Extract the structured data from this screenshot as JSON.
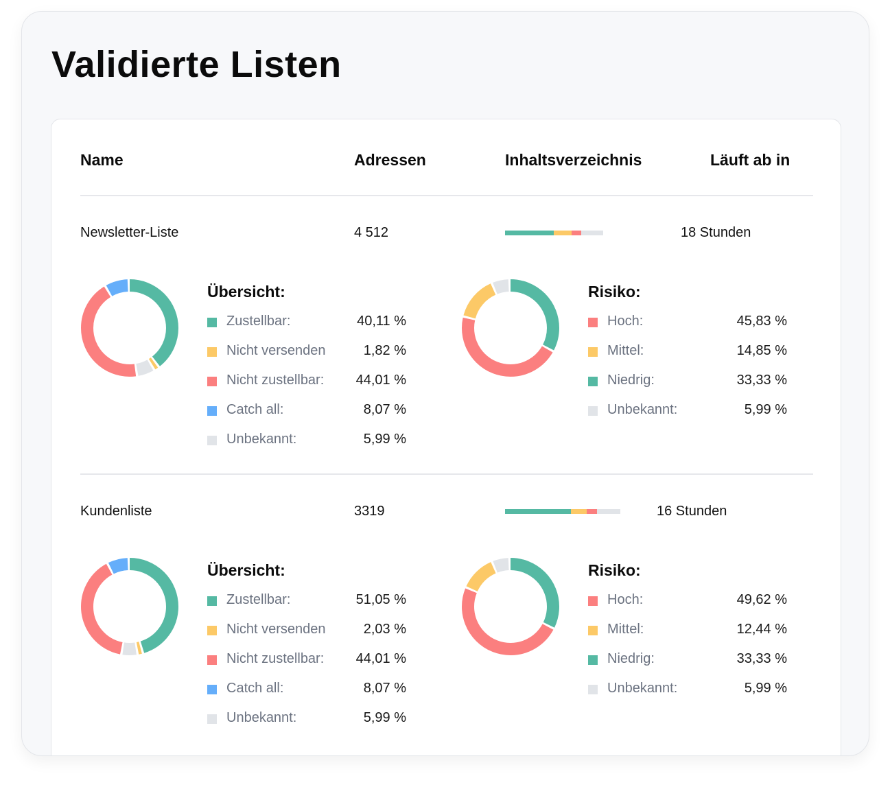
{
  "page": {
    "title": "Validierte Listen"
  },
  "colors": {
    "zustellbar": "#55b9a3",
    "nicht_versenden": "#fcc967",
    "nicht_zustellbar": "#fb7f7f",
    "catch_all": "#65aefa",
    "unbekannt": "#e1e4e8",
    "hoch": "#fb7f7f",
    "mittel": "#fcc967",
    "niedrig": "#55b9a3"
  },
  "table": {
    "headers": {
      "name": "Name",
      "adressen": "Adressen",
      "inhalt": "Inhaltsverzeichnis",
      "laeuft": "Läuft ab in"
    }
  },
  "lists": [
    {
      "name": "Newsletter-Liste",
      "adressen": "4 512",
      "expires": "18 Stunden",
      "content_bar_fraction": 1.0,
      "overview": {
        "title": "Übersicht:",
        "items": [
          {
            "key": "zustellbar",
            "label": "Zustellbar:",
            "value": "40,11 %",
            "pct": 40.11,
            "color": "#55b9a3"
          },
          {
            "key": "nicht_versenden",
            "label": "Nicht versenden",
            "value": "1,82 %",
            "pct": 1.82,
            "color": "#fcc967"
          },
          {
            "key": "nicht_zustellbar",
            "label": "Nicht zustellbar:",
            "value": "44,01 %",
            "pct": 44.01,
            "color": "#fb7f7f"
          },
          {
            "key": "catch_all",
            "label": "Catch all:",
            "value": "8,07 %",
            "pct": 8.07,
            "color": "#65aefa"
          },
          {
            "key": "unbekannt",
            "label": "Unbekannt:",
            "value": "5,99 %",
            "pct": 5.99,
            "color": "#e1e4e8"
          }
        ],
        "donut_order": [
          "zustellbar",
          "nicht_versenden",
          "unbekannt",
          "nicht_zustellbar",
          "catch_all"
        ]
      },
      "risk": {
        "title": "Risiko:",
        "items": [
          {
            "key": "hoch",
            "label": "Hoch:",
            "value": "45,83 %",
            "pct": 45.83,
            "color": "#fb7f7f"
          },
          {
            "key": "mittel",
            "label": "Mittel:",
            "value": "14,85 %",
            "pct": 14.85,
            "color": "#fcc967"
          },
          {
            "key": "niedrig",
            "label": "Niedrig:",
            "value": "33,33 %",
            "pct": 33.33,
            "color": "#55b9a3"
          },
          {
            "key": "unbekannt",
            "label": "Unbekannt:",
            "value": "5,99 %",
            "pct": 5.99,
            "color": "#e1e4e8"
          }
        ],
        "donut_order": [
          "niedrig",
          "hoch",
          "mittel",
          "unbekannt"
        ]
      }
    },
    {
      "name": "Kundenliste",
      "adressen": "3319",
      "expires": "16 Stunden",
      "content_bar_fraction": 1.0,
      "overview": {
        "title": "Übersicht:",
        "items": [
          {
            "key": "zustellbar",
            "label": "Zustellbar:",
            "value": "51,05 %",
            "pct": 51.05,
            "color": "#55b9a3"
          },
          {
            "key": "nicht_versenden",
            "label": "Nicht versenden",
            "value": "2,03 %",
            "pct": 2.03,
            "color": "#fcc967"
          },
          {
            "key": "nicht_zustellbar",
            "label": "Nicht zustellbar:",
            "value": "44,01 %",
            "pct": 44.01,
            "color": "#fb7f7f"
          },
          {
            "key": "catch_all",
            "label": "Catch all:",
            "value": "8,07 %",
            "pct": 8.07,
            "color": "#65aefa"
          },
          {
            "key": "unbekannt",
            "label": "Unbekannt:",
            "value": "5,99 %",
            "pct": 5.99,
            "color": "#e1e4e8"
          }
        ],
        "donut_order": [
          "zustellbar",
          "nicht_versenden",
          "unbekannt",
          "nicht_zustellbar",
          "catch_all"
        ]
      },
      "risk": {
        "title": "Risiko:",
        "items": [
          {
            "key": "hoch",
            "label": "Hoch:",
            "value": "49,62 %",
            "pct": 49.62,
            "color": "#fb7f7f"
          },
          {
            "key": "mittel",
            "label": "Mittel:",
            "value": "12,44 %",
            "pct": 12.44,
            "color": "#fcc967"
          },
          {
            "key": "niedrig",
            "label": "Niedrig:",
            "value": "33,33 %",
            "pct": 33.33,
            "color": "#55b9a3"
          },
          {
            "key": "unbekannt",
            "label": "Unbekannt:",
            "value": "5,99 %",
            "pct": 5.99,
            "color": "#e1e4e8"
          }
        ],
        "donut_order": [
          "niedrig",
          "hoch",
          "mittel",
          "unbekannt"
        ]
      }
    }
  ]
}
